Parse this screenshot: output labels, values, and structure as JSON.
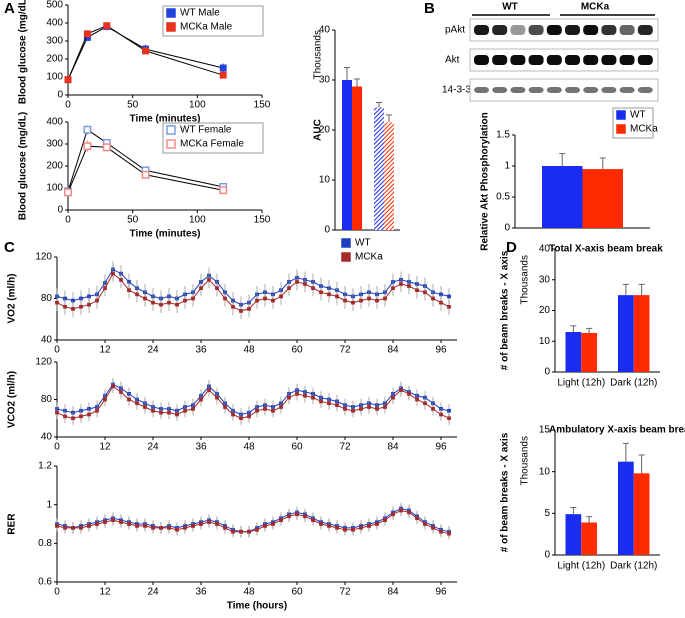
{
  "panels": [
    "A",
    "B",
    "C",
    "D"
  ],
  "blot": {
    "groups": [
      "WT",
      "MCKa"
    ],
    "rows": [
      "pAkt",
      "Akt",
      "14-3-3"
    ]
  },
  "chart_data": [
    {
      "type": "line",
      "ylabel": "Blood glucose (mg/dL)",
      "xlabel": "Time (minutes)",
      "legend": "upper right",
      "x": [
        0,
        15,
        30,
        60,
        120
      ],
      "xlim": [
        0,
        150
      ],
      "xticks": [
        0,
        50,
        100,
        150
      ],
      "ylim": [
        0,
        500
      ],
      "yticks": [
        0,
        100,
        200,
        300,
        400,
        500
      ],
      "series": [
        {
          "name": "WT Male",
          "color": "#2244dd",
          "marker": "filled",
          "values": [
            85,
            320,
            380,
            255,
            150
          ],
          "errors": [
            10,
            20,
            20,
            25,
            25
          ]
        },
        {
          "name": "MCKa Male",
          "color": "#e8321e",
          "marker": "filled",
          "values": [
            85,
            340,
            385,
            245,
            110
          ],
          "errors": [
            10,
            20,
            20,
            20,
            15
          ]
        }
      ]
    },
    {
      "type": "line",
      "ylabel": "Blood glucose (mg/dL)",
      "xlabel": "Time (minutes)",
      "legend": "upper right",
      "x": [
        0,
        15,
        30,
        60,
        120
      ],
      "xlim": [
        0,
        150
      ],
      "xticks": [
        0,
        50,
        100,
        150
      ],
      "ylim": [
        0,
        400
      ],
      "yticks": [
        0,
        100,
        200,
        300,
        400
      ],
      "series": [
        {
          "name": "WT Female",
          "color": "#7f9be0",
          "marker": "hollow",
          "values": [
            85,
            365,
            305,
            180,
            105
          ],
          "errors": [
            10,
            20,
            15,
            15,
            10
          ]
        },
        {
          "name": "MCKa Female",
          "color": "#f08a8a",
          "marker": "hollow",
          "values": [
            80,
            290,
            285,
            160,
            90
          ],
          "errors": [
            10,
            25,
            20,
            15,
            10
          ]
        }
      ]
    },
    {
      "type": "bar",
      "ylabel": "AUC",
      "unit_label": "Thousands",
      "categories": [
        null,
        null,
        null,
        null
      ],
      "values": [
        30,
        28.7,
        24.5,
        21.5
      ],
      "errors": [
        2.5,
        1.5,
        1,
        1.5
      ],
      "colors": [
        "#1a2cf0",
        "#ff2a00",
        "#1a2cf0",
        "#ff2a00"
      ],
      "hatch": [
        false,
        false,
        true,
        true
      ],
      "ylim": [
        0,
        40
      ],
      "yticks": [
        0,
        10,
        20,
        30,
        40
      ]
    },
    {
      "type": "bar",
      "ylabel": "Relative Akt Phosphorylation",
      "legend": "upper right",
      "categories": [
        null
      ],
      "ylim": [
        0,
        1.5
      ],
      "yticks": [
        0,
        0.5,
        1,
        1.5
      ],
      "series": [
        {
          "name": "WT",
          "color": "#1a2cf0",
          "values": [
            1.0
          ],
          "errors": [
            0.2
          ]
        },
        {
          "name": "MCKa",
          "color": "#ff2a00",
          "values": [
            0.95
          ],
          "errors": [
            0.18
          ]
        }
      ]
    },
    {
      "type": "line",
      "ylabel": "VO2 (ml/h)",
      "legend": "upper center",
      "x": [
        0,
        2,
        4,
        6,
        8,
        10,
        12,
        14,
        16,
        18,
        20,
        22,
        24,
        26,
        28,
        30,
        32,
        34,
        36,
        38,
        40,
        42,
        44,
        46,
        48,
        50,
        52,
        54,
        56,
        58,
        60,
        62,
        64,
        66,
        68,
        70,
        72,
        74,
        76,
        78,
        80,
        82,
        84,
        86,
        88,
        90,
        92,
        94,
        96,
        98
      ],
      "xlim": [
        0,
        100
      ],
      "xticks": [
        0,
        12,
        24,
        36,
        48,
        60,
        72,
        84,
        96
      ],
      "ylim": [
        40,
        120
      ],
      "yticks": [
        40,
        80,
        120
      ],
      "series": [
        {
          "name": "WT",
          "color": "#1f3fbf",
          "marker": "small",
          "error": 8,
          "values": [
            82,
            80,
            78,
            80,
            82,
            84,
            95,
            108,
            104,
            96,
            90,
            86,
            82,
            80,
            82,
            80,
            84,
            86,
            96,
            102,
            96,
            86,
            78,
            74,
            76,
            84,
            86,
            84,
            88,
            96,
            100,
            98,
            96,
            92,
            90,
            88,
            84,
            82,
            84,
            86,
            84,
            86,
            96,
            98,
            96,
            94,
            92,
            86,
            84,
            82
          ]
        },
        {
          "name": "MCKa",
          "color": "#a52a2a",
          "marker": "small",
          "error": 8,
          "values": [
            76,
            72,
            70,
            72,
            74,
            78,
            90,
            104,
            98,
            88,
            84,
            80,
            76,
            74,
            76,
            74,
            78,
            80,
            90,
            98,
            90,
            80,
            72,
            68,
            70,
            78,
            80,
            78,
            82,
            90,
            96,
            94,
            90,
            86,
            84,
            82,
            78,
            76,
            78,
            80,
            78,
            80,
            90,
            94,
            92,
            88,
            86,
            80,
            76,
            72
          ]
        }
      ]
    },
    {
      "type": "line",
      "ylabel": "VCO2 (ml/h)",
      "x": [
        0,
        2,
        4,
        6,
        8,
        10,
        12,
        14,
        16,
        18,
        20,
        22,
        24,
        26,
        28,
        30,
        32,
        34,
        36,
        38,
        40,
        42,
        44,
        46,
        48,
        50,
        52,
        54,
        56,
        58,
        60,
        62,
        64,
        66,
        68,
        70,
        72,
        74,
        76,
        78,
        80,
        82,
        84,
        86,
        88,
        90,
        92,
        94,
        96,
        98
      ],
      "xlim": [
        0,
        100
      ],
      "xticks": [
        0,
        12,
        24,
        36,
        48,
        60,
        72,
        84,
        96
      ],
      "ylim": [
        40,
        120
      ],
      "yticks": [
        40,
        80,
        120
      ],
      "series": [
        {
          "name": "WT",
          "color": "#1f3fbf",
          "marker": "small",
          "error": 7,
          "values": [
            70,
            68,
            66,
            68,
            70,
            72,
            84,
            96,
            92,
            86,
            80,
            76,
            72,
            70,
            70,
            68,
            72,
            74,
            84,
            94,
            86,
            76,
            68,
            64,
            66,
            72,
            74,
            72,
            76,
            86,
            90,
            88,
            86,
            82,
            80,
            78,
            74,
            72,
            74,
            76,
            74,
            76,
            86,
            92,
            88,
            84,
            82,
            76,
            70,
            68
          ]
        },
        {
          "name": "MCKa",
          "color": "#a52a2a",
          "marker": "small",
          "error": 7,
          "values": [
            66,
            62,
            60,
            62,
            64,
            68,
            80,
            94,
            88,
            80,
            76,
            72,
            68,
            66,
            66,
            64,
            68,
            70,
            80,
            90,
            82,
            72,
            64,
            60,
            62,
            68,
            70,
            68,
            72,
            82,
            86,
            84,
            82,
            78,
            76,
            74,
            70,
            68,
            70,
            72,
            70,
            72,
            82,
            90,
            86,
            80,
            76,
            70,
            64,
            60
          ]
        }
      ]
    },
    {
      "type": "line",
      "ylabel": "RER",
      "xlabel": "Time (hours)",
      "x": [
        0,
        2,
        4,
        6,
        8,
        10,
        12,
        14,
        16,
        18,
        20,
        22,
        24,
        26,
        28,
        30,
        32,
        34,
        36,
        38,
        40,
        42,
        44,
        46,
        48,
        50,
        52,
        54,
        56,
        58,
        60,
        62,
        64,
        66,
        68,
        70,
        72,
        74,
        76,
        78,
        80,
        82,
        84,
        86,
        88,
        90,
        92,
        94,
        96,
        98
      ],
      "xlim": [
        0,
        100
      ],
      "xticks": [
        0,
        12,
        24,
        36,
        48,
        60,
        72,
        84,
        96
      ],
      "ylim": [
        0.6,
        1.2
      ],
      "yticks": [
        0.6,
        0.8,
        1,
        1.2
      ],
      "series": [
        {
          "name": "WT",
          "color": "#1f3fbf",
          "marker": "small",
          "error": 0.03,
          "values": [
            0.9,
            0.89,
            0.88,
            0.89,
            0.9,
            0.91,
            0.92,
            0.93,
            0.92,
            0.91,
            0.9,
            0.9,
            0.89,
            0.88,
            0.89,
            0.88,
            0.89,
            0.9,
            0.91,
            0.92,
            0.91,
            0.89,
            0.87,
            0.86,
            0.86,
            0.88,
            0.9,
            0.91,
            0.93,
            0.95,
            0.96,
            0.95,
            0.93,
            0.91,
            0.9,
            0.89,
            0.88,
            0.88,
            0.89,
            0.9,
            0.91,
            0.93,
            0.96,
            0.98,
            0.97,
            0.94,
            0.91,
            0.89,
            0.87,
            0.86
          ]
        },
        {
          "name": "MCKa",
          "color": "#a52a2a",
          "marker": "small",
          "error": 0.03,
          "values": [
            0.89,
            0.88,
            0.88,
            0.88,
            0.89,
            0.9,
            0.91,
            0.92,
            0.91,
            0.9,
            0.89,
            0.89,
            0.88,
            0.88,
            0.88,
            0.87,
            0.88,
            0.89,
            0.9,
            0.91,
            0.9,
            0.88,
            0.86,
            0.86,
            0.86,
            0.87,
            0.89,
            0.9,
            0.92,
            0.94,
            0.95,
            0.94,
            0.92,
            0.9,
            0.89,
            0.88,
            0.87,
            0.87,
            0.88,
            0.89,
            0.9,
            0.92,
            0.95,
            0.97,
            0.96,
            0.93,
            0.9,
            0.88,
            0.86,
            0.85
          ]
        }
      ]
    },
    {
      "type": "bar",
      "title": "Total X-axis beam break",
      "ylabel": "# of beam breaks - X axis",
      "unit_label": "Thousands",
      "categories": [
        "Light (12h)",
        "Dark (12h)"
      ],
      "ylim": [
        0,
        40
      ],
      "yticks": [
        0,
        10,
        20,
        30,
        40
      ],
      "series": [
        {
          "name": "WT",
          "color": "#1a2cf0",
          "values": [
            13,
            25
          ],
          "errors": [
            2,
            3.5
          ]
        },
        {
          "name": "MCKa",
          "color": "#ff2a00",
          "values": [
            12.7,
            25
          ],
          "errors": [
            1.5,
            3.5
          ]
        }
      ]
    },
    {
      "type": "bar",
      "title": "Ambulatory X-axis beam break",
      "ylabel": "# of beam breaks - X axis",
      "unit_label": "Thousands",
      "categories": [
        "Light (12h)",
        "Dark (12h)"
      ],
      "ylim": [
        0,
        15
      ],
      "yticks": [
        0,
        5,
        10,
        15
      ],
      "series": [
        {
          "name": "WT",
          "color": "#1a2cf0",
          "values": [
            4.9,
            11.2
          ],
          "errors": [
            0.8,
            2.2
          ]
        },
        {
          "name": "MCKa",
          "color": "#ff2a00",
          "values": [
            3.9,
            9.8
          ],
          "errors": [
            0.7,
            2.2
          ]
        }
      ]
    }
  ]
}
